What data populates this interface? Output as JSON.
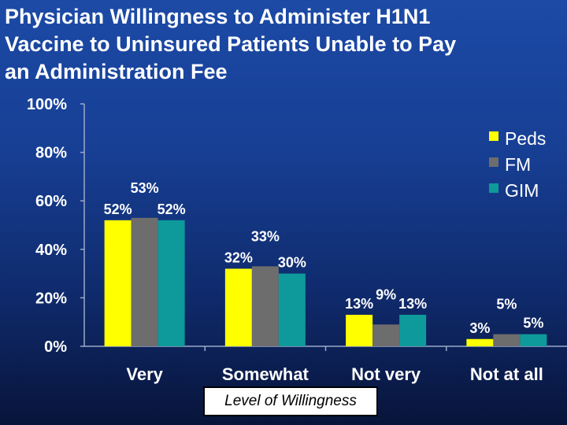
{
  "chart_data": {
    "type": "bar",
    "title_lines": [
      "Physician Willingness to Administer H1N1",
      "Vaccine to Uninsured Patients Unable to Pay",
      "an Administration Fee"
    ],
    "xlabel": "Level of Willingness",
    "ylabel": "",
    "ylim": [
      0,
      100
    ],
    "yticks": [
      "0%",
      "20%",
      "40%",
      "60%",
      "80%",
      "100%"
    ],
    "categories": [
      "Very",
      "Somewhat",
      "Not very",
      "Not at all"
    ],
    "series": [
      {
        "name": "Peds",
        "color": "#ffff00",
        "values": [
          52,
          32,
          13,
          3
        ],
        "labels": [
          "52%",
          "32%",
          "13%",
          "3%"
        ]
      },
      {
        "name": "FM",
        "color": "#6d6d6d",
        "values": [
          53,
          33,
          9,
          5
        ],
        "labels": [
          "53%",
          "33%",
          "9%",
          "5%"
        ]
      },
      {
        "name": "GIM",
        "color": "#0e9a9a",
        "values": [
          52,
          30,
          13,
          5
        ],
        "labels": [
          "52%",
          "30%",
          "13%",
          "5%"
        ]
      }
    ],
    "legend_position": "top-right",
    "grid": false
  }
}
